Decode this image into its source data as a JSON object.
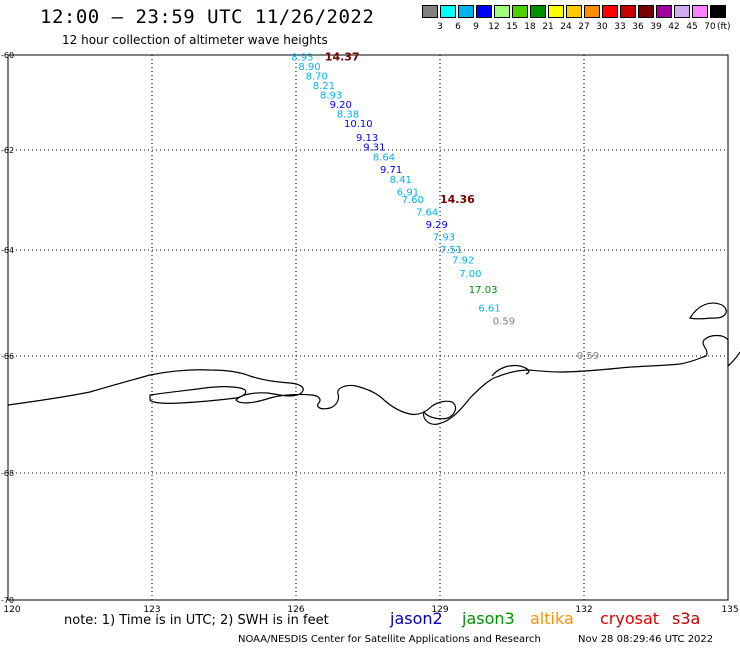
{
  "header": {
    "title": "12:00 — 23:59 UTC 11/26/2022",
    "subtitle": "12 hour collection of altimeter wave heights"
  },
  "legend": {
    "colors": [
      "#808080",
      "#00ffff",
      "#00b4f0",
      "#0000ff",
      "#a0ff80",
      "#50d000",
      "#009000",
      "#ffff00",
      "#ffc800",
      "#ff8c00",
      "#ff0000",
      "#c80000",
      "#780000",
      "#a000a0",
      "#d2aaf0",
      "#ff80ff",
      "#000000"
    ],
    "labels": [
      "3",
      "6",
      "9",
      "12",
      "15",
      "18",
      "21",
      "24",
      "27",
      "30",
      "33",
      "36",
      "39",
      "42",
      "45",
      "70"
    ],
    "unit": "(ft)"
  },
  "map": {
    "lon_ticks": [
      "120",
      "123",
      "126",
      "129",
      "132",
      "135"
    ],
    "lat_ticks": [
      "-60",
      "-62",
      "-64",
      "-66",
      "-68",
      "-70"
    ],
    "lon_values": [
      120,
      123,
      126,
      129,
      132,
      135
    ],
    "lat_values": [
      -60,
      -62,
      -64,
      -66,
      -68,
      -70
    ]
  },
  "track": [
    {
      "lon": 125.9,
      "lat": -60.05,
      "label": "8.93",
      "color": "#00b4f0"
    },
    {
      "lon": 126.05,
      "lat": -60.25,
      "label": "8.90",
      "color": "#00b4f0"
    },
    {
      "lon": 126.2,
      "lat": -60.45,
      "label": "8.70",
      "color": "#00b4f0"
    },
    {
      "lon": 126.35,
      "lat": -60.65,
      "label": "8.21",
      "color": "#00b4f0"
    },
    {
      "lon": 126.5,
      "lat": -60.85,
      "label": "8.93",
      "color": "#00b4f0"
    },
    {
      "lon": 126.7,
      "lat": -61.05,
      "label": "9.20",
      "color": "#0000ff"
    },
    {
      "lon": 126.85,
      "lat": -61.25,
      "label": "8.38",
      "color": "#00b4f0"
    },
    {
      "lon": 127.0,
      "lat": -61.45,
      "label": "10.10",
      "color": "#0000ff"
    },
    {
      "lon": 127.25,
      "lat": -61.75,
      "label": "9.13",
      "color": "#0000ff"
    },
    {
      "lon": 127.4,
      "lat": -61.95,
      "label": "9.31",
      "color": "#0000ff"
    },
    {
      "lon": 127.6,
      "lat": -62.15,
      "label": "8.64",
      "color": "#00b4f0"
    },
    {
      "lon": 127.75,
      "lat": -62.4,
      "label": "9.71",
      "color": "#0000ff"
    },
    {
      "lon": 127.95,
      "lat": -62.6,
      "label": "8.41",
      "color": "#00b4f0"
    },
    {
      "lon": 128.1,
      "lat": -62.85,
      "label": "6.91",
      "color": "#00b4f0"
    },
    {
      "lon": 128.2,
      "lat": -63.0,
      "label": "7.60",
      "color": "#00b4f0"
    },
    {
      "lon": 128.5,
      "lat": -63.25,
      "label": "7.64",
      "color": "#00b4f0"
    },
    {
      "lon": 128.7,
      "lat": -63.5,
      "label": "9.29",
      "color": "#0000ff"
    },
    {
      "lon": 128.85,
      "lat": -63.75,
      "label": "7.93",
      "color": "#00b4f0"
    },
    {
      "lon": 129.0,
      "lat": -64.0,
      "label": "7.51",
      "color": "#00b4f0"
    },
    {
      "lon": 129.25,
      "lat": -64.2,
      "label": "7.92",
      "color": "#00b4f0"
    },
    {
      "lon": 129.4,
      "lat": -64.45,
      "label": "7.00",
      "color": "#00b4f0"
    },
    {
      "lon": 129.6,
      "lat": -64.75,
      "label": "17.03",
      "color": "#009000"
    },
    {
      "lon": 129.8,
      "lat": -65.1,
      "label": "6.61",
      "color": "#00b4f0"
    },
    {
      "lon": 130.1,
      "lat": -65.35,
      "label": "0.59",
      "color": "#808080"
    },
    {
      "lon": 131.85,
      "lat": -66.0,
      "label": "0.59",
      "color": "#808080"
    }
  ],
  "extra_labels": [
    {
      "lon": 126.6,
      "lat": -60.05,
      "label": "14.37",
      "color": "#780000"
    },
    {
      "lon": 129.0,
      "lat": -63.0,
      "label": "14.36",
      "color": "#780000"
    }
  ],
  "footer": {
    "note": "note: 1) Time is in UTC; 2) SWH is in feet",
    "satellites": [
      {
        "name": "jason2",
        "color": "#0000c0"
      },
      {
        "name": "jason3",
        "color": "#009000"
      },
      {
        "name": "altika",
        "color": "#ff9000"
      },
      {
        "name": "cryosat",
        "color": "#e00000"
      },
      {
        "name": "s3a",
        "color": "#c00000"
      }
    ],
    "credit": "NOAA/NESDIS Center for Satellite Applications and Research",
    "timestamp": "Nov 28 08:29:46 UTC 2022"
  }
}
